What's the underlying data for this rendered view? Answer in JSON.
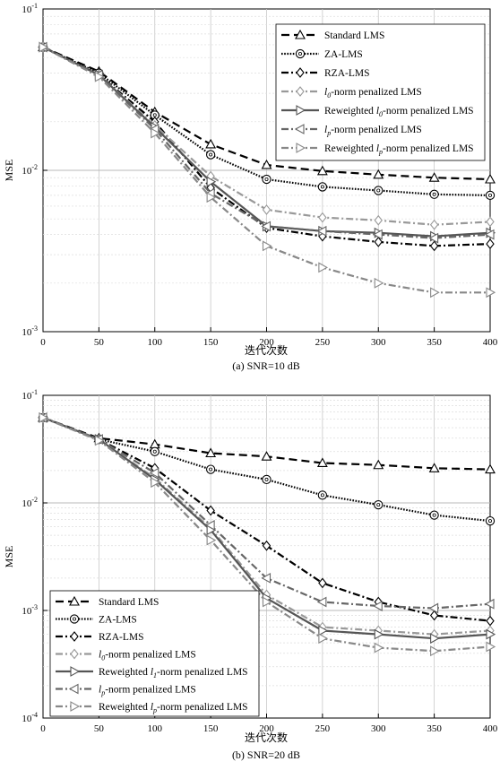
{
  "chart_data": [
    {
      "type": "line",
      "caption": "(a) SNR=10 dB",
      "xlabel": "迭代次数",
      "ylabel": "MSE",
      "yscale": "log",
      "xlim": [
        0,
        400
      ],
      "ylim": [
        0.001,
        0.1
      ],
      "x_ticks": [
        "0",
        "50",
        "100",
        "150",
        "200",
        "250",
        "300",
        "350",
        "400"
      ],
      "y_ticks": [
        {
          "base": "10",
          "exp": "-1"
        },
        {
          "base": "10",
          "exp": "-2"
        },
        {
          "base": "10",
          "exp": "-3"
        }
      ],
      "grid": true,
      "legend_position": "top-right",
      "x": [
        0,
        50,
        100,
        150,
        200,
        250,
        300,
        350,
        400
      ],
      "series": [
        {
          "name": "Standard LMS",
          "values": [
            0.058,
            0.041,
            0.023,
            0.0145,
            0.0108,
            0.0099,
            0.0094,
            0.009,
            0.0088
          ]
        },
        {
          "name": "ZA-LMS",
          "values": [
            0.058,
            0.04,
            0.022,
            0.0125,
            0.0088,
            0.0079,
            0.0075,
            0.0071,
            0.007
          ]
        },
        {
          "name": "RZA-LMS",
          "values": [
            0.058,
            0.039,
            0.02,
            0.0078,
            0.0044,
            0.0039,
            0.0036,
            0.0034,
            0.0035
          ]
        },
        {
          "name": "l0-norm penalized LMS",
          "values": [
            0.058,
            0.039,
            0.019,
            0.0092,
            0.0057,
            0.0051,
            0.0049,
            0.0046,
            0.0048
          ]
        },
        {
          "name": "Reweighted l0-norm penalized LMS",
          "values": [
            0.058,
            0.039,
            0.0185,
            0.0085,
            0.0045,
            0.0042,
            0.0041,
            0.0039,
            0.0041
          ]
        },
        {
          "name": "lp-norm penalized LMS",
          "values": [
            0.058,
            0.039,
            0.018,
            0.0072,
            0.0045,
            0.0042,
            0.004,
            0.0038,
            0.004
          ]
        },
        {
          "name": "Reweighted lp-norm penalized LMS",
          "values": [
            0.058,
            0.038,
            0.017,
            0.0068,
            0.0034,
            0.0025,
            0.002,
            0.00175,
            0.00175
          ]
        }
      ]
    },
    {
      "type": "line",
      "caption": "(b) SNR=20 dB",
      "xlabel": "迭代次数",
      "ylabel": "MSE",
      "yscale": "log",
      "xlim": [
        0,
        400
      ],
      "ylim": [
        0.0001,
        0.1
      ],
      "x_ticks": [
        "0",
        "50",
        "100",
        "150",
        "200",
        "250",
        "300",
        "350",
        "400"
      ],
      "y_ticks": [
        {
          "base": "10",
          "exp": "-1"
        },
        {
          "base": "10",
          "exp": "-2"
        },
        {
          "base": "10",
          "exp": "-3"
        },
        {
          "base": "10",
          "exp": "-4"
        }
      ],
      "grid": true,
      "legend_position": "bottom-left",
      "x": [
        0,
        50,
        100,
        150,
        200,
        250,
        300,
        350,
        400
      ],
      "series": [
        {
          "name": "Standard LMS",
          "values": [
            0.062,
            0.04,
            0.035,
            0.029,
            0.027,
            0.0235,
            0.0225,
            0.021,
            0.0205
          ]
        },
        {
          "name": "ZA-LMS",
          "values": [
            0.062,
            0.039,
            0.03,
            0.0205,
            0.0165,
            0.0118,
            0.0096,
            0.0077,
            0.0068
          ]
        },
        {
          "name": "RZA-LMS",
          "values": [
            0.062,
            0.039,
            0.021,
            0.0085,
            0.004,
            0.0018,
            0.0012,
            0.0009,
            0.0008
          ]
        },
        {
          "name": "l0-norm penalized LMS",
          "values": [
            0.062,
            0.039,
            0.017,
            0.0058,
            0.0014,
            0.0007,
            0.00065,
            0.0006,
            0.00065
          ]
        },
        {
          "name": "Reweighted l1-norm penalized LMS",
          "values": [
            0.062,
            0.039,
            0.0165,
            0.0056,
            0.0013,
            0.00065,
            0.0006,
            0.00055,
            0.0006
          ]
        },
        {
          "name": "lp-norm penalized LMS",
          "values": [
            0.062,
            0.039,
            0.019,
            0.0062,
            0.002,
            0.0012,
            0.0011,
            0.00105,
            0.00115
          ]
        },
        {
          "name": "Reweighted lp-norm penalized LMS",
          "values": [
            0.062,
            0.038,
            0.0155,
            0.0045,
            0.0012,
            0.00055,
            0.00045,
            0.00042,
            0.00046
          ]
        }
      ]
    }
  ],
  "legends": [
    [
      {
        "pre": "Standard LMS",
        "sym": "",
        "sub": "",
        "post": ""
      },
      {
        "pre": "ZA-LMS",
        "sym": "",
        "sub": "",
        "post": ""
      },
      {
        "pre": "RZA-LMS",
        "sym": "",
        "sub": "",
        "post": ""
      },
      {
        "pre": "",
        "sym": "l",
        "sub": "0",
        "post": "-norm penalized LMS"
      },
      {
        "pre": "Reweighted ",
        "sym": "l",
        "sub": "0",
        "post": "-norm penalized LMS"
      },
      {
        "pre": "",
        "sym": "l",
        "sub": "p",
        "post": "-norm penalized LMS"
      },
      {
        "pre": "Reweighted ",
        "sym": "l",
        "sub": "p",
        "post": "-norm penalized LMS"
      }
    ],
    [
      {
        "pre": "Standard LMS",
        "sym": "",
        "sub": "",
        "post": ""
      },
      {
        "pre": "ZA-LMS",
        "sym": "",
        "sub": "",
        "post": ""
      },
      {
        "pre": "RZA-LMS",
        "sym": "",
        "sub": "",
        "post": ""
      },
      {
        "pre": "",
        "sym": "l",
        "sub": "0",
        "post": "-norm penalized LMS"
      },
      {
        "pre": "Reweighted ",
        "sym": "l",
        "sub": "1",
        "post": "-norm penalized LMS"
      },
      {
        "pre": "",
        "sym": "l",
        "sub": "p",
        "post": "-norm penalized LMS"
      },
      {
        "pre": "Reweighted ",
        "sym": "l",
        "sub": "p",
        "post": "-norm penalized LMS"
      }
    ]
  ],
  "styles": [
    {
      "color": "#000000",
      "dash": "9,5",
      "marker": "triangle-up",
      "filled": false
    },
    {
      "color": "#000000",
      "dash": "1.6,1.6",
      "marker": "circle",
      "filled": false
    },
    {
      "color": "#000000",
      "dash": "8,3,2,3",
      "marker": "diamond",
      "filled": false
    },
    {
      "color": "#999999",
      "dash": "8,3,2,3",
      "marker": "diamond",
      "filled": false
    },
    {
      "color": "#555555",
      "dash": "",
      "marker": "triangle-right",
      "filled": false
    },
    {
      "color": "#666666",
      "dash": "8,3,2,3",
      "marker": "triangle-left",
      "filled": false
    },
    {
      "color": "#888888",
      "dash": "8,3,2,3",
      "marker": "triangle-right",
      "filled": false
    }
  ]
}
